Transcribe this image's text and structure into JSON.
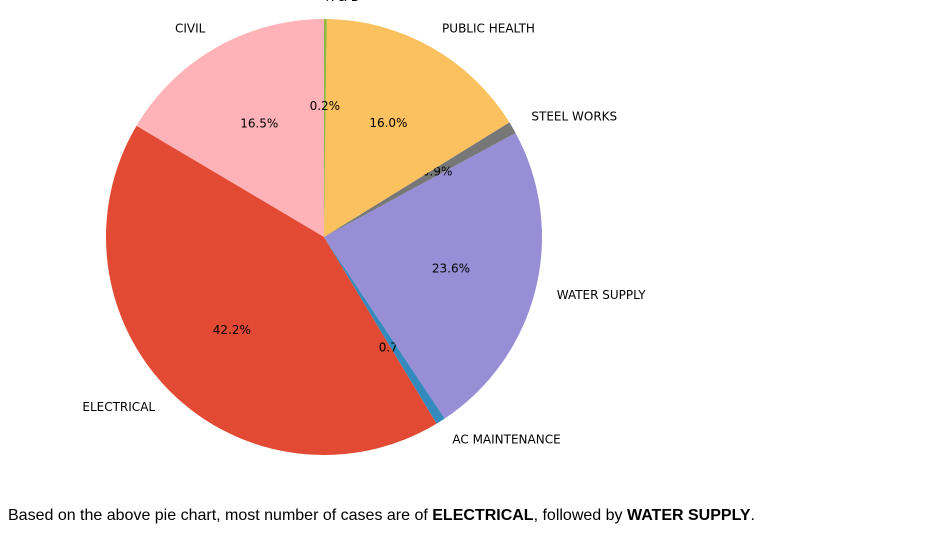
{
  "chart_data": {
    "type": "pie",
    "title": "",
    "start_angle_deg": 90,
    "direction": "counterclockwise",
    "slices": [
      {
        "label": "CIVIL",
        "value": 16.5,
        "pct_label": "16.5%",
        "color": "#ffb3b8"
      },
      {
        "label": "ELECTRICAL",
        "value": 42.2,
        "pct_label": "42.2%",
        "color": "#e24a33"
      },
      {
        "label": "AC MAINTENANCE",
        "value": 0.7,
        "pct_label": "0.7%",
        "color": "#348abd"
      },
      {
        "label": "WATER SUPPLY",
        "value": 23.6,
        "pct_label": "23.6%",
        "color": "#988ed5"
      },
      {
        "label": "STEEL WORKS",
        "value": 0.9,
        "pct_label": "0.9%",
        "color": "#777777"
      },
      {
        "label": "PUBLIC HEALTH",
        "value": 16.0,
        "pct_label": "16.0%",
        "color": "#fbc15e"
      },
      {
        "label": "R & D",
        "value": 0.2,
        "pct_label": "0.2%",
        "color": "#8eba42"
      }
    ]
  },
  "caption": {
    "prefix": "Based on the above pie chart, most number of cases are of ",
    "first": "ELECTRICAL",
    "middle": ", followed by ",
    "second": "WATER SUPPLY",
    "suffix": "."
  }
}
